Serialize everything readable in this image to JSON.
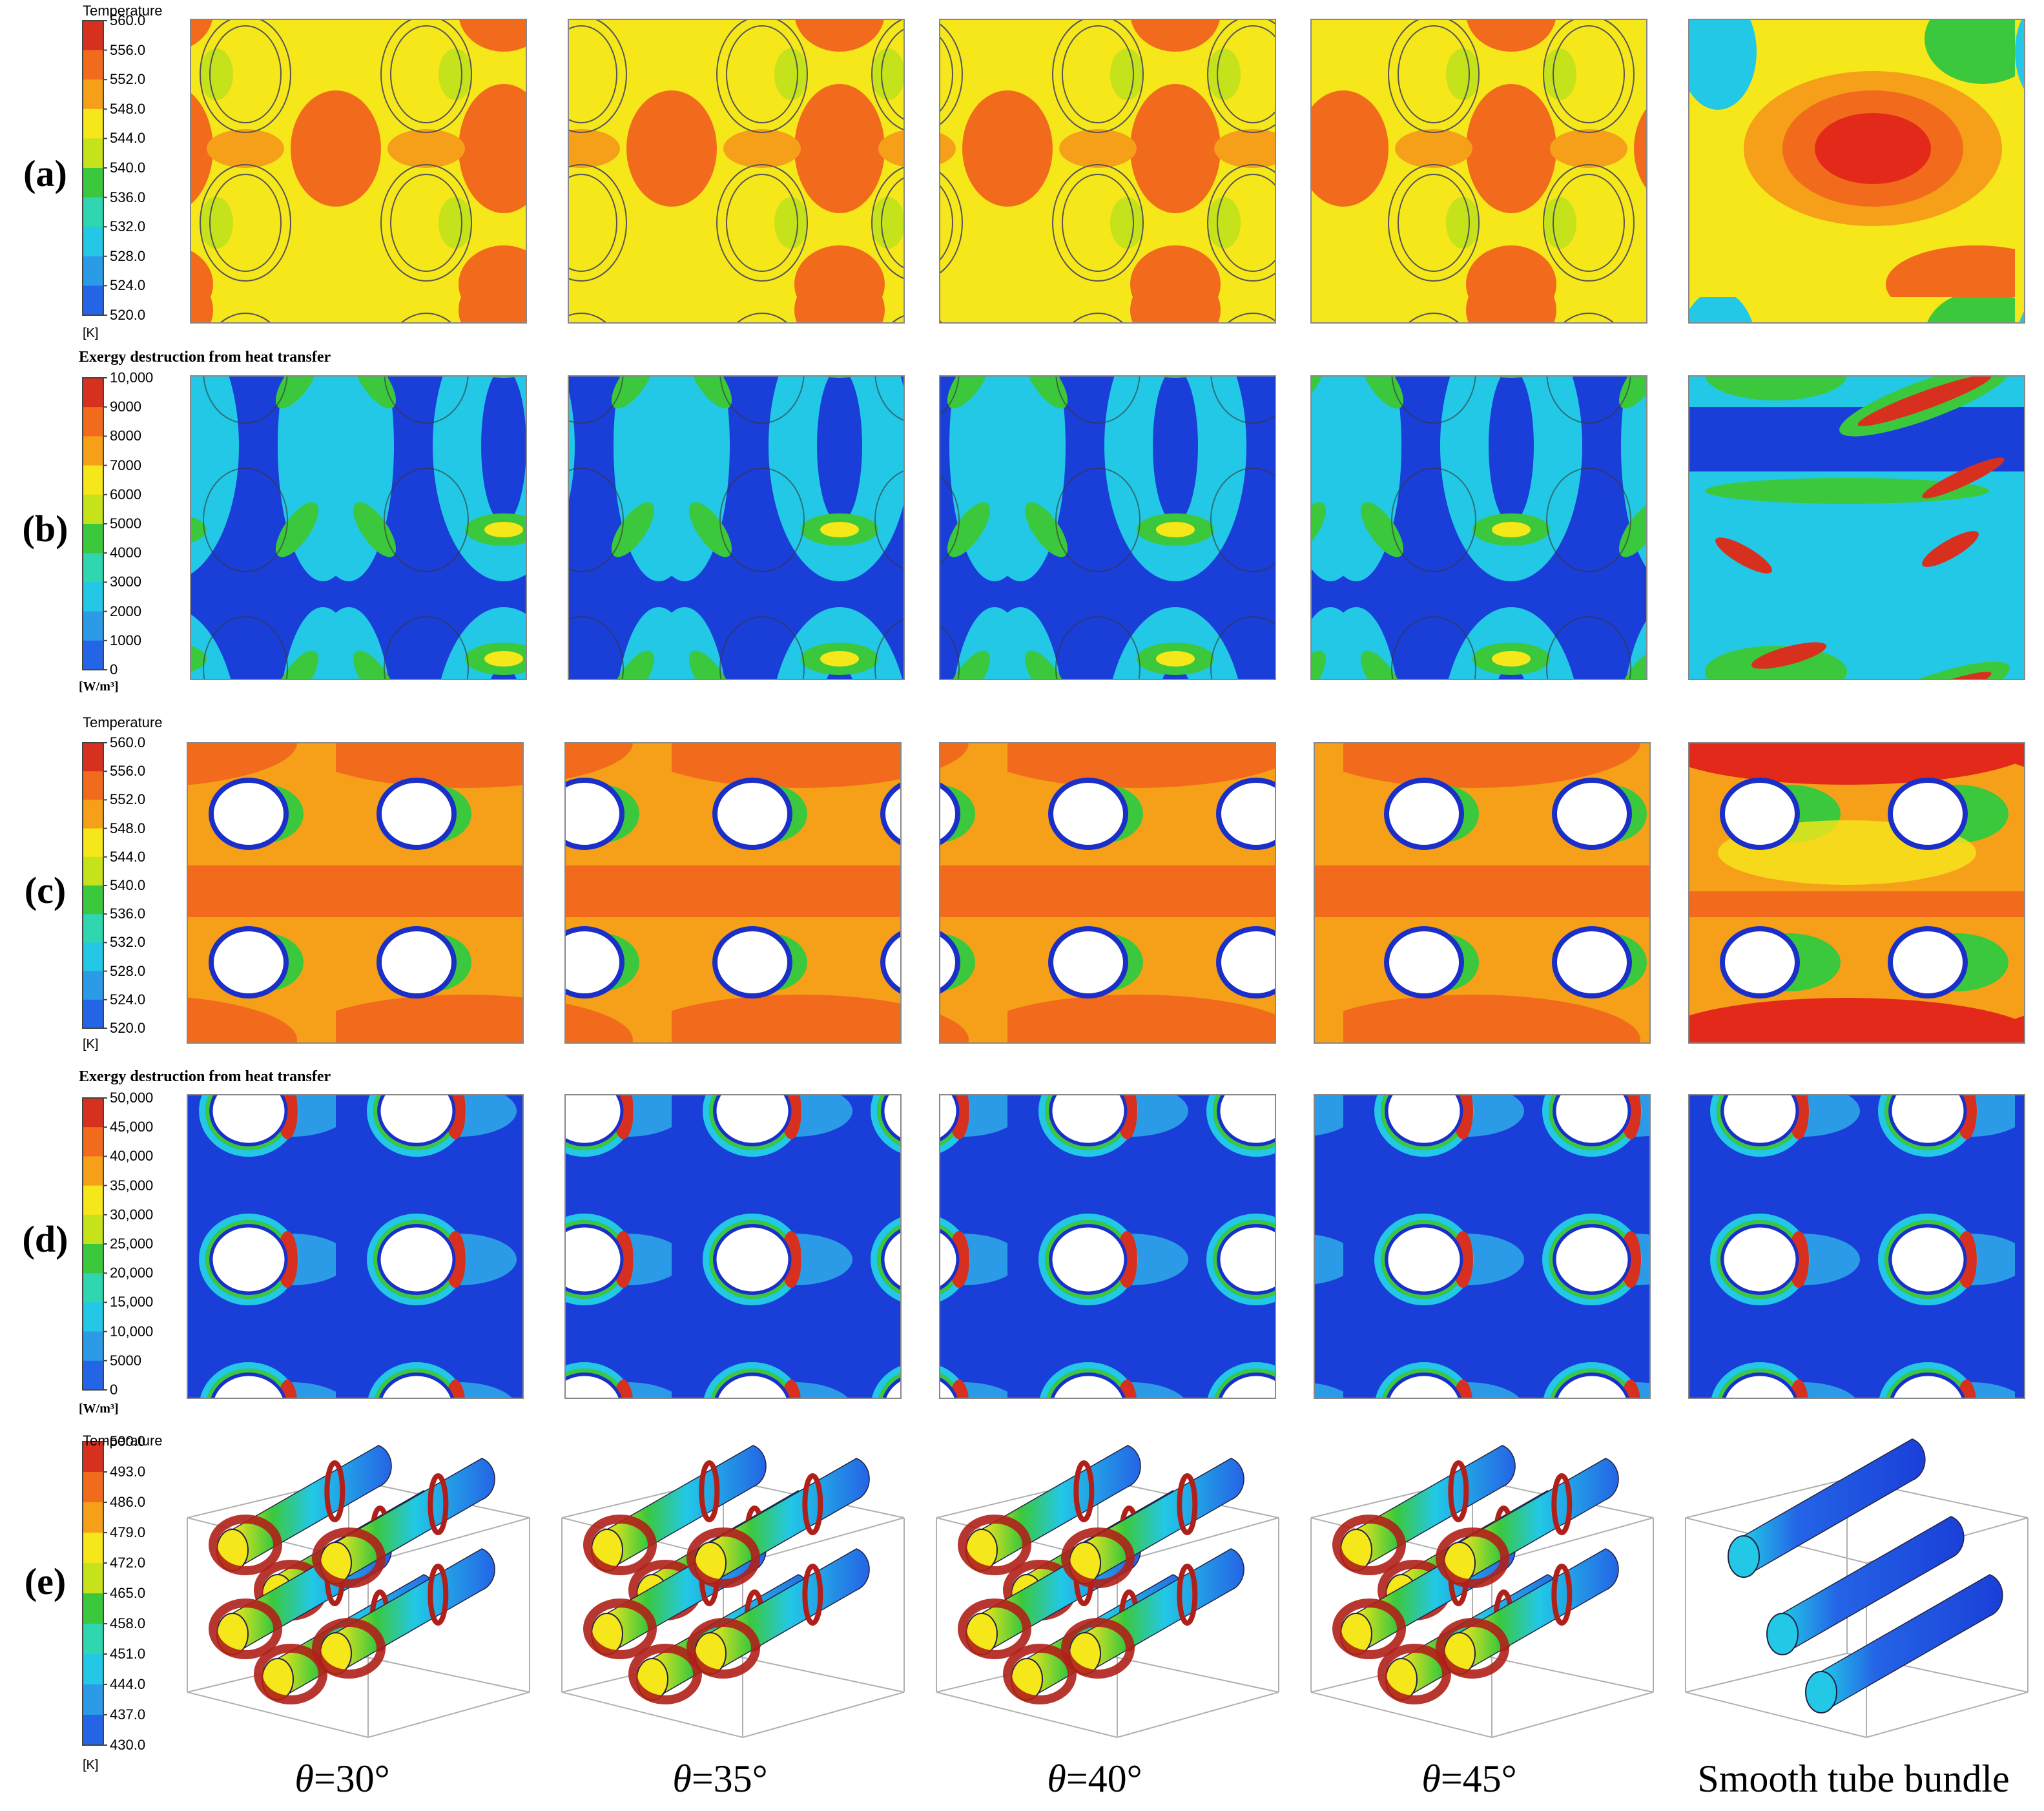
{
  "rows": [
    {
      "label": "(a)",
      "title": "Temperature",
      "unit": "[K]",
      "ticks": [
        "560.0",
        "556.0",
        "552.0",
        "548.0",
        "544.0",
        "540.0",
        "536.0",
        "532.0",
        "528.0",
        "524.0",
        "520.0"
      ]
    },
    {
      "label": "(b)",
      "title": "Exergy destruction from heat transfer",
      "unit": "[W/m³]",
      "ticks": [
        "10,000",
        "9000",
        "8000",
        "7000",
        "6000",
        "5000",
        "4000",
        "3000",
        "2000",
        "1000",
        "0"
      ]
    },
    {
      "label": "(c)",
      "title": "Temperature",
      "unit": "[K]",
      "ticks": [
        "560.0",
        "556.0",
        "552.0",
        "548.0",
        "544.0",
        "540.0",
        "536.0",
        "532.0",
        "528.0",
        "524.0",
        "520.0"
      ]
    },
    {
      "label": "(d)",
      "title": "Exergy destruction from heat transfer",
      "unit": "[W/m³]",
      "ticks": [
        "50,000",
        "45,000",
        "40,000",
        "35,000",
        "30,000",
        "25,000",
        "20,000",
        "15,000",
        "10,000",
        "5000",
        "0"
      ]
    },
    {
      "label": "(e)",
      "title": "Temperature",
      "unit": "[K]",
      "ticks": [
        "500.0",
        "493.0",
        "486.0",
        "479.0",
        "472.0",
        "465.0",
        "458.0",
        "451.0",
        "444.0",
        "437.0",
        "430.0"
      ]
    }
  ],
  "columns": [
    {
      "symbol": "θ",
      "value": "=30°"
    },
    {
      "symbol": "θ",
      "value": "=35°"
    },
    {
      "symbol": "θ",
      "value": "=40°"
    },
    {
      "symbol": "θ",
      "value": "=45°"
    },
    {
      "symbol": "",
      "value": "Smooth tube bundle"
    }
  ],
  "colormap": [
    "#d7301f",
    "#f26b1d",
    "#f6a01a",
    "#f5e71a",
    "#c6e21a",
    "#3cc83c",
    "#2fd6b0",
    "#22c8e6",
    "#2b9be8",
    "#2464e6",
    "#1a3fd8"
  ]
}
